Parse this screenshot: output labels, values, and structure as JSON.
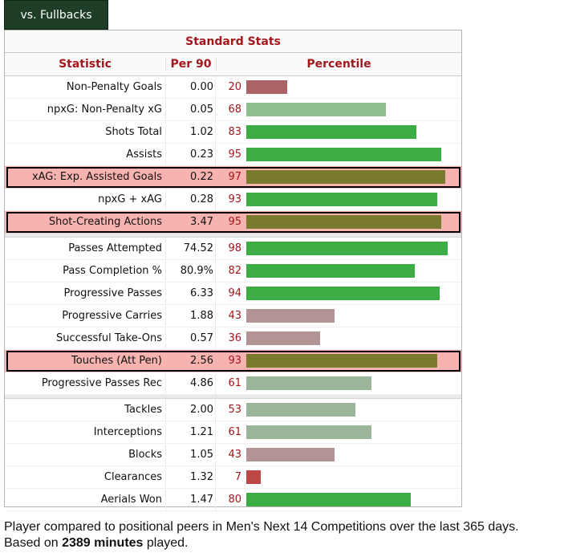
{
  "tab": {
    "label": "vs. Fullbacks"
  },
  "table": {
    "title": "Standard Stats",
    "headers": {
      "statistic": "Statistic",
      "per90": "Per 90",
      "percentile": "Percentile"
    },
    "groups": [
      [
        {
          "stat": "Non-Penalty Goals",
          "per90": "0.00",
          "percentile": 20,
          "highlight": false
        },
        {
          "stat": "npxG: Non-Penalty xG",
          "per90": "0.05",
          "percentile": 68,
          "highlight": false
        },
        {
          "stat": "Shots Total",
          "per90": "1.02",
          "percentile": 83,
          "highlight": false
        },
        {
          "stat": "Assists",
          "per90": "0.23",
          "percentile": 95,
          "highlight": false
        },
        {
          "stat": "xAG: Exp. Assisted Goals",
          "per90": "0.22",
          "percentile": 97,
          "highlight": true
        },
        {
          "stat": "npxG + xAG",
          "per90": "0.28",
          "percentile": 93,
          "highlight": false
        },
        {
          "stat": "Shot-Creating Actions",
          "per90": "3.47",
          "percentile": 95,
          "highlight": true
        }
      ],
      [
        {
          "stat": "Passes Attempted",
          "per90": "74.52",
          "percentile": 98,
          "highlight": false
        },
        {
          "stat": "Pass Completion %",
          "per90": "80.9%",
          "percentile": 82,
          "highlight": false
        },
        {
          "stat": "Progressive Passes",
          "per90": "6.33",
          "percentile": 94,
          "highlight": false
        },
        {
          "stat": "Progressive Carries",
          "per90": "1.88",
          "percentile": 43,
          "highlight": false
        },
        {
          "stat": "Successful Take-Ons",
          "per90": "0.57",
          "percentile": 36,
          "highlight": false
        },
        {
          "stat": "Touches (Att Pen)",
          "per90": "2.56",
          "percentile": 93,
          "highlight": true
        },
        {
          "stat": "Progressive Passes Rec",
          "per90": "4.86",
          "percentile": 61,
          "highlight": false
        }
      ],
      [
        {
          "stat": "Tackles",
          "per90": "2.00",
          "percentile": 53,
          "highlight": false
        },
        {
          "stat": "Interceptions",
          "per90": "1.21",
          "percentile": 61,
          "highlight": false
        },
        {
          "stat": "Blocks",
          "per90": "1.05",
          "percentile": 43,
          "highlight": false
        },
        {
          "stat": "Clearances",
          "per90": "1.32",
          "percentile": 7,
          "highlight": false
        },
        {
          "stat": "Aerials Won",
          "per90": "1.47",
          "percentile": 80,
          "highlight": false
        }
      ]
    ]
  },
  "colors": {
    "high": "#3cad45",
    "mid": "#8fbf8f",
    "midlow": "#9ab59a",
    "low": "#b39494",
    "lowest": "#ad6265",
    "verylow": "#bd4747",
    "highlight_bar": "#7a7a2f",
    "highlight_row": "#f6b3b0"
  },
  "note": {
    "prefix": "Player compared to positional peers in Men's Next 14 Competitions over the last 365 days. Based on ",
    "minutes": "2389 minutes",
    "suffix": " played."
  }
}
